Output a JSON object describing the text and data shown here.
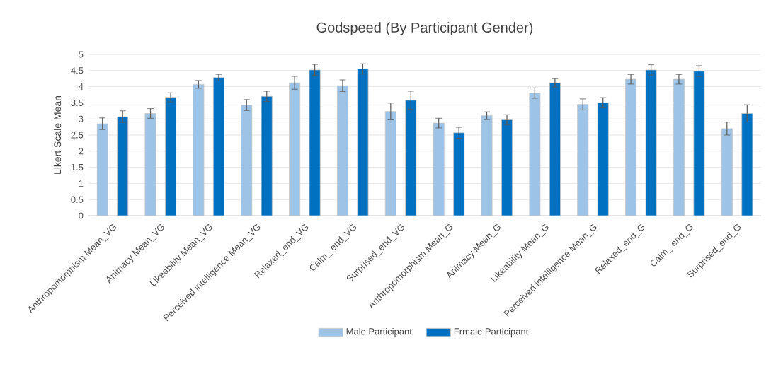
{
  "chart_data": {
    "type": "bar",
    "title": "Godspeed (By Participant Gender)",
    "ylabel": "Likert Scale Mean",
    "categories": [
      "Anthropomorphism Mean_VG",
      "Animacy Mean_VG",
      "Likeability Mean_VG",
      "Perceived intelligence Mean_VG",
      "Relaxed_end_VG",
      "Calm_ end_VG",
      "Surprised_end_VG",
      "Anthropomorphism Mean_G",
      "Animacy Mean_G",
      "Likeability Mean_G",
      "Perceived intelligence Mean_G",
      "Relaxed_end_G",
      "Calm_ end_G",
      "Surprised_end_G"
    ],
    "series": [
      {
        "name": "Male Participant",
        "color": "#9dc3e6",
        "values": [
          2.85,
          3.17,
          4.07,
          3.43,
          4.12,
          4.03,
          3.23,
          2.87,
          3.1,
          3.8,
          3.45,
          4.23,
          4.23,
          2.7
        ],
        "errors": [
          0.18,
          0.15,
          0.12,
          0.17,
          0.2,
          0.18,
          0.26,
          0.15,
          0.12,
          0.16,
          0.17,
          0.15,
          0.15,
          0.2
        ]
      },
      {
        "name": "Frmale Participant",
        "color": "#0070c0",
        "values": [
          3.07,
          3.67,
          4.28,
          3.7,
          4.52,
          4.55,
          3.58,
          2.57,
          2.97,
          4.12,
          3.5,
          4.52,
          4.48,
          3.17
        ],
        "errors": [
          0.18,
          0.14,
          0.1,
          0.16,
          0.17,
          0.16,
          0.28,
          0.17,
          0.16,
          0.13,
          0.16,
          0.16,
          0.17,
          0.27
        ]
      }
    ],
    "ylim": [
      0,
      5
    ],
    "yticks": [
      0,
      0.5,
      1,
      1.5,
      2,
      2.5,
      3,
      3.5,
      4,
      4.5,
      5
    ],
    "grid": "y",
    "legend": "bottom"
  }
}
